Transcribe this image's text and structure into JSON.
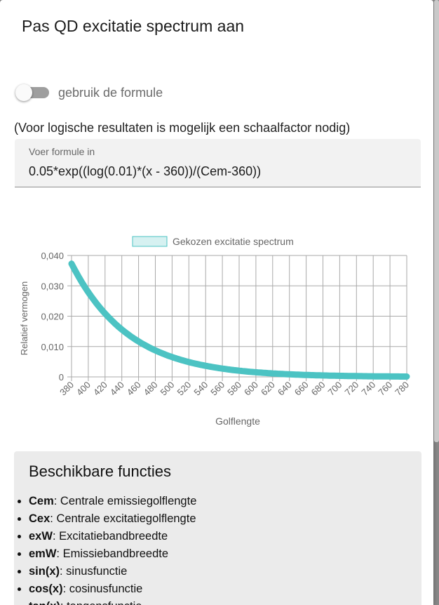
{
  "dialog": {
    "title": "Pas QD excitatie spectrum aan",
    "toggle_label": "gebruik de formule",
    "hint": "(Voor logische resultaten is mogelijk een schaalfactor nodig)",
    "formula_label": "Voer formule in",
    "formula_value": "0.05*exp((log(0.01)*(x - 360))/(Cem-360))"
  },
  "colors": {
    "series": "#4cc3c3",
    "legend_fill": "#d6f1f1",
    "grid": "#a9a9a9"
  },
  "chart_data": {
    "type": "line",
    "legend": "Gekozen excitatie spectrum",
    "legend_position": "top-center",
    "xlabel": "Golflengte",
    "ylabel": "Relatief vermogen",
    "xlim": [
      380,
      780
    ],
    "ylim": [
      0,
      0.04
    ],
    "grid": true,
    "x_ticks": [
      "380",
      "400",
      "420",
      "440",
      "460",
      "480",
      "500",
      "520",
      "540",
      "560",
      "580",
      "600",
      "620",
      "640",
      "660",
      "680",
      "700",
      "720",
      "740",
      "760",
      "780"
    ],
    "y_ticks": [
      "0",
      "0,010",
      "0,020",
      "0,030",
      "0,040"
    ],
    "series": [
      {
        "name": "Gekozen excitatie spectrum",
        "x": [
          380,
          400,
          420,
          440,
          460,
          480,
          500,
          520,
          540,
          560,
          580,
          600,
          620,
          640,
          660,
          680,
          700,
          720,
          740,
          760,
          780
        ],
        "y": [
          0.0373,
          0.0279,
          0.0208,
          0.0155,
          0.0116,
          0.0086,
          0.0064,
          0.0048,
          0.0036,
          0.0027,
          0.002,
          0.0015,
          0.0011,
          0.0008,
          0.0006,
          0.0005,
          0.0003,
          0.0003,
          0.0002,
          0.0001,
          0.0001
        ]
      }
    ]
  },
  "functions": {
    "title": "Beschikbare functies",
    "items": [
      {
        "name": "Cem",
        "desc": ": Centrale emissiegolflengte"
      },
      {
        "name": "Cex",
        "desc": ": Centrale excitatiegolflengte"
      },
      {
        "name": "exW",
        "desc": ": Excitatiebandbreedte"
      },
      {
        "name": "emW",
        "desc": ": Emissiebandbreedte"
      },
      {
        "name": "sin(x)",
        "desc": ": sinusfunctie"
      },
      {
        "name": "cos(x)",
        "desc": ": cosinusfunctie"
      },
      {
        "name": "tan(x)",
        "desc": ": tangensfunctie"
      }
    ]
  }
}
